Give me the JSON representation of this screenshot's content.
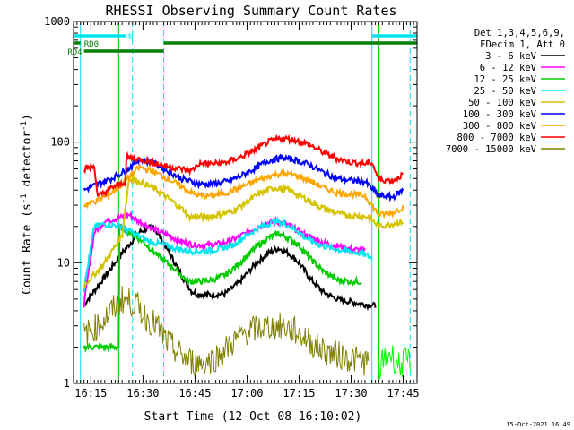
{
  "chart_data": {
    "type": "line",
    "title": "RHESSI Observing Summary Count Rates",
    "xlabel": "Start Time (12-Oct-08 16:10:02)",
    "ylabel_main": "Count Rate (s",
    "ylabel_sup1": "-1",
    "ylabel_mid": " detector",
    "ylabel_sup2": "-1",
    "ylabel_end": ")",
    "y_scale": "log",
    "ylim": [
      1,
      1000
    ],
    "xlim_minutes": [
      0,
      99
    ],
    "x_ticks": [
      {
        "minute": 5,
        "label": "16:15"
      },
      {
        "minute": 20,
        "label": "16:30"
      },
      {
        "minute": 35,
        "label": "16:45"
      },
      {
        "minute": 50,
        "label": "17:00"
      },
      {
        "minute": 65,
        "label": "17:15"
      },
      {
        "minute": 80,
        "label": "17:30"
      },
      {
        "minute": 95,
        "label": "17:45"
      }
    ],
    "y_ticks": [
      {
        "value": 1,
        "label": "1"
      },
      {
        "value": 10,
        "label": "10"
      },
      {
        "value": 100,
        "label": "100"
      },
      {
        "value": 1000,
        "label": "1000"
      }
    ],
    "legend_header": [
      "Det 1,3,4,5,6,9,",
      "FDecim 1, Att 0"
    ],
    "legend_placement": "right",
    "series": [
      {
        "name": "3 - 6 keV",
        "color": "#000000",
        "points": [
          [
            3,
            4.5
          ],
          [
            8,
            7
          ],
          [
            14,
            12
          ],
          [
            19,
            18
          ],
          [
            23,
            20
          ],
          [
            27,
            13
          ],
          [
            31,
            8
          ],
          [
            34,
            5.8
          ],
          [
            36,
            5.5
          ],
          [
            40,
            5.4
          ],
          [
            44,
            5.6
          ],
          [
            48,
            7
          ],
          [
            52,
            9.5
          ],
          [
            56,
            12
          ],
          [
            59,
            13.2
          ],
          [
            62,
            12
          ],
          [
            65,
            10
          ],
          [
            68,
            7.5
          ],
          [
            72,
            5.7
          ],
          [
            76,
            5
          ],
          [
            82,
            4.6
          ],
          [
            87,
            4.4
          ]
        ]
      },
      {
        "name": "6 - 12 keV",
        "color": "#ff00ff",
        "points": [
          [
            3,
            4.5
          ],
          [
            6,
            18
          ],
          [
            9,
            22
          ],
          [
            14,
            24
          ],
          [
            16,
            25
          ],
          [
            19,
            22
          ],
          [
            23,
            19
          ],
          [
            27,
            17
          ],
          [
            31,
            15
          ],
          [
            35,
            14
          ],
          [
            39,
            14
          ],
          [
            43,
            14.5
          ],
          [
            47,
            16
          ],
          [
            51,
            18.5
          ],
          [
            55,
            21
          ],
          [
            58,
            22
          ],
          [
            61,
            21
          ],
          [
            64,
            19
          ],
          [
            67,
            17
          ],
          [
            71,
            15
          ],
          [
            75,
            14
          ],
          [
            80,
            13
          ],
          [
            84,
            12.5
          ]
        ]
      },
      {
        "name": "12 - 25 keV",
        "color": "#00cc00",
        "points": [
          [
            3,
            2
          ],
          [
            13,
            2
          ],
          [
            13,
            20
          ],
          [
            16,
            18
          ],
          [
            20,
            15
          ],
          [
            25,
            11
          ],
          [
            30,
            8.5
          ],
          [
            33,
            7
          ],
          [
            36,
            7
          ],
          [
            40,
            7.2
          ],
          [
            44,
            8
          ],
          [
            48,
            10
          ],
          [
            52,
            13
          ],
          [
            56,
            16
          ],
          [
            59,
            17.5
          ],
          [
            62,
            16
          ],
          [
            65,
            14
          ],
          [
            68,
            11
          ],
          [
            72,
            8.5
          ],
          [
            76,
            7.2
          ],
          [
            80,
            7
          ],
          [
            83,
            7
          ]
        ]
      },
      {
        "name": "25 - 50 keV",
        "color": "#00e5ee",
        "points": [
          [
            3,
            6
          ],
          [
            6,
            20
          ],
          [
            9,
            21
          ],
          [
            14,
            20
          ],
          [
            18,
            17
          ],
          [
            22,
            15
          ],
          [
            26,
            14
          ],
          [
            30,
            13
          ],
          [
            34,
            12.5
          ],
          [
            38,
            12.5
          ],
          [
            42,
            13
          ],
          [
            46,
            14
          ],
          [
            50,
            17
          ],
          [
            54,
            20
          ],
          [
            58,
            22
          ],
          [
            61,
            21
          ],
          [
            64,
            19
          ],
          [
            67,
            16
          ],
          [
            71,
            14
          ],
          [
            75,
            13
          ],
          [
            79,
            12.5
          ],
          [
            83,
            12
          ],
          [
            86,
            11
          ]
        ]
      },
      {
        "name": "50 - 100 keV",
        "color": "#d4c400",
        "points": [
          [
            3,
            6.5
          ],
          [
            6,
            8
          ],
          [
            9,
            10
          ],
          [
            14,
            17
          ],
          [
            16,
            50
          ],
          [
            20,
            46
          ],
          [
            24,
            40
          ],
          [
            28,
            33
          ],
          [
            32,
            27
          ],
          [
            33,
            24
          ],
          [
            38,
            24
          ],
          [
            42,
            25
          ],
          [
            46,
            27
          ],
          [
            50,
            32
          ],
          [
            54,
            38
          ],
          [
            58,
            42
          ],
          [
            62,
            40
          ],
          [
            66,
            35
          ],
          [
            70,
            30
          ],
          [
            74,
            27
          ],
          [
            78,
            25
          ],
          [
            82,
            24.5
          ],
          [
            85,
            24
          ],
          [
            88,
            20
          ],
          [
            95,
            22
          ]
        ]
      },
      {
        "name": "100 - 300 keV",
        "color": "#0000ff",
        "points": [
          [
            3,
            40
          ],
          [
            7,
            45
          ],
          [
            11,
            50
          ],
          [
            15,
            58
          ],
          [
            19,
            72
          ],
          [
            23,
            67
          ],
          [
            27,
            58
          ],
          [
            31,
            50
          ],
          [
            34,
            47
          ],
          [
            36,
            45
          ],
          [
            40,
            45
          ],
          [
            44,
            47
          ],
          [
            48,
            52
          ],
          [
            52,
            60
          ],
          [
            56,
            70
          ],
          [
            60,
            74
          ],
          [
            64,
            71
          ],
          [
            68,
            65
          ],
          [
            72,
            56
          ],
          [
            76,
            50
          ],
          [
            80,
            48
          ],
          [
            84,
            47
          ],
          [
            88,
            36
          ],
          [
            92,
            35
          ],
          [
            95,
            40
          ]
        ]
      },
      {
        "name": "300 - 800 keV",
        "color": "#ffa500",
        "points": [
          [
            3,
            30
          ],
          [
            7,
            33
          ],
          [
            11,
            38
          ],
          [
            15,
            48
          ],
          [
            19,
            62
          ],
          [
            23,
            57
          ],
          [
            27,
            50
          ],
          [
            31,
            43
          ],
          [
            34,
            38
          ],
          [
            36,
            36
          ],
          [
            40,
            36
          ],
          [
            44,
            38
          ],
          [
            48,
            42
          ],
          [
            52,
            47
          ],
          [
            56,
            52
          ],
          [
            60,
            55
          ],
          [
            64,
            53
          ],
          [
            68,
            48
          ],
          [
            72,
            42
          ],
          [
            76,
            38
          ],
          [
            80,
            37
          ],
          [
            84,
            36
          ],
          [
            88,
            25
          ],
          [
            92,
            26
          ],
          [
            95,
            29
          ]
        ]
      },
      {
        "name": "800 - 7000 keV",
        "color": "#ff0000",
        "points": [
          [
            3,
            60
          ],
          [
            6,
            63
          ],
          [
            7,
            35
          ],
          [
            11,
            42
          ],
          [
            15,
            47
          ],
          [
            15,
            75
          ],
          [
            19,
            72
          ],
          [
            23,
            68
          ],
          [
            27,
            63
          ],
          [
            31,
            60
          ],
          [
            34,
            58
          ],
          [
            36,
            66
          ],
          [
            40,
            66
          ],
          [
            44,
            68
          ],
          [
            48,
            75
          ],
          [
            52,
            85
          ],
          [
            56,
            100
          ],
          [
            60,
            108
          ],
          [
            64,
            104
          ],
          [
            68,
            95
          ],
          [
            72,
            82
          ],
          [
            76,
            73
          ],
          [
            80,
            68
          ],
          [
            84,
            66
          ],
          [
            86,
            68
          ],
          [
            88,
            49
          ],
          [
            92,
            48
          ],
          [
            95,
            54
          ]
        ]
      },
      {
        "name": "7000 - 15000 keV",
        "color": "#808000",
        "points": [
          [
            3,
            2.5
          ],
          [
            7,
            3
          ],
          [
            11,
            4
          ],
          [
            14,
            5
          ],
          [
            18,
            4.5
          ],
          [
            21,
            3.5
          ],
          [
            24,
            3
          ],
          [
            27,
            2.2
          ],
          [
            30,
            1.8
          ],
          [
            34,
            1.5
          ],
          [
            38,
            1.5
          ],
          [
            42,
            1.7
          ],
          [
            46,
            2.2
          ],
          [
            50,
            2.7
          ],
          [
            54,
            2.9
          ],
          [
            58,
            3
          ],
          [
            62,
            2.9
          ],
          [
            66,
            2.5
          ],
          [
            70,
            2
          ],
          [
            74,
            1.8
          ],
          [
            80,
            1.6
          ],
          [
            85,
            1.5
          ]
        ]
      },
      {
        "name": "",
        "color": "#00ff00",
        "points": [
          [
            88,
            1.3
          ],
          [
            91,
            1.8
          ],
          [
            94,
            1.4
          ],
          [
            97,
            1.6
          ]
        ]
      }
    ],
    "attenuator_bars": [
      {
        "label": "N",
        "color": "#00e5ee",
        "from": 0,
        "to": 15
      },
      {
        "label": "",
        "color": "#00e5ee",
        "from": 86,
        "to": 99
      },
      {
        "label": "RD0",
        "color": "#008000",
        "from": 0,
        "to": 2
      },
      {
        "label": "",
        "color": "#008000",
        "from": 26,
        "to": 99
      },
      {
        "label": "RD4",
        "color": "#008000",
        "from": 3,
        "to": 26
      }
    ],
    "vertical_markers": [
      {
        "minute": 2,
        "color": "#00e5ee",
        "style": "solid"
      },
      {
        "minute": 13,
        "color": "#00cc00",
        "style": "solid"
      },
      {
        "minute": 17,
        "color": "#00e5ee",
        "style": "dash"
      },
      {
        "minute": 26,
        "color": "#00e5ee",
        "style": "dash"
      },
      {
        "minute": 86,
        "color": "#00e5ee",
        "style": "solid"
      },
      {
        "minute": 88,
        "color": "#00cc00",
        "style": "solid"
      },
      {
        "minute": 97,
        "color": "#00e5ee",
        "style": "dash"
      }
    ],
    "timestamp": "15-Oct-2021 16:49"
  }
}
